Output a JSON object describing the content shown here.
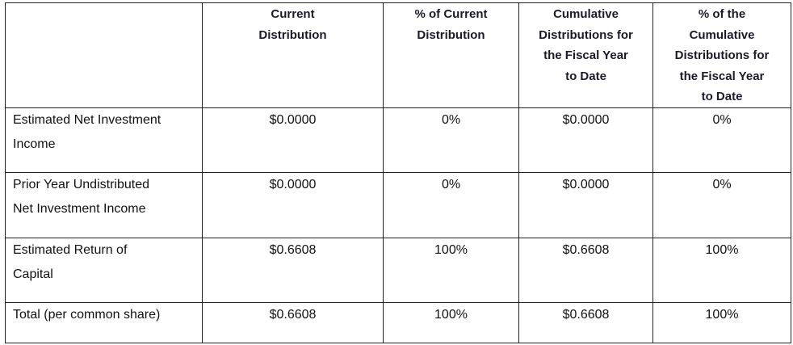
{
  "table": {
    "header": [
      [
        "Current",
        "Distribution"
      ],
      [
        "% of Current",
        "Distribution"
      ],
      [
        "Cumulative",
        "Distributions for",
        "the Fiscal Year",
        "to Date"
      ],
      [
        "% of the",
        "Cumulative",
        "Distributions for",
        "the Fiscal Year",
        "to Date"
      ]
    ],
    "rows": [
      [
        [
          "Estimated Net Investment",
          "Income"
        ],
        "$0.0000",
        "0%",
        "$0.0000",
        "0%"
      ],
      [
        [
          "Prior Year Undistributed",
          "Net Investment Income"
        ],
        "$0.0000",
        "0%",
        "$0.0000",
        "0%"
      ],
      [
        [
          "Estimated Return of",
          "Capital"
        ],
        "$0.6608",
        "100%",
        "$0.6608",
        "100%"
      ],
      [
        [
          "Total (per common share)"
        ],
        "$0.6608",
        "100%",
        "$0.6608",
        "100%"
      ]
    ]
  }
}
